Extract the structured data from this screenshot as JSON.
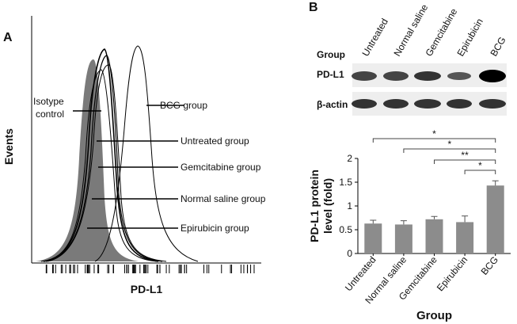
{
  "panel_a": {
    "letter": "A",
    "y_label": "Events",
    "x_label": "PD-L1",
    "isotype_label": [
      "Isotype",
      "control"
    ],
    "group_labels": [
      "BCG group",
      "Untreated group",
      "Gemcitabine group",
      "Normal saline group",
      "Epirubicin group"
    ]
  },
  "panel_b": {
    "letter": "B",
    "blot": {
      "header": "Group",
      "lanes": [
        "Untreated",
        "Normal saline",
        "Gemcitabine",
        "Epirubicin",
        "BCG"
      ],
      "rows": [
        "PD-L1",
        "β-actin"
      ]
    }
  },
  "chart_data": {
    "type": "bar",
    "categories": [
      "Untreated",
      "Normal saline",
      "Gemcitabine",
      "Epirubicin",
      "BCG"
    ],
    "values": [
      0.63,
      0.61,
      0.72,
      0.66,
      1.43
    ],
    "errors": [
      0.07,
      0.08,
      0.06,
      0.13,
      0.1
    ],
    "color": "#8c8c8c",
    "ylim": [
      0,
      2
    ],
    "yticks": [
      0,
      0.5,
      1,
      1.5,
      2
    ],
    "y_label": [
      "PD-L1 protein",
      "level (fold)"
    ],
    "x_label": "Group",
    "significance": [
      "*",
      "*",
      "**",
      "*"
    ]
  }
}
